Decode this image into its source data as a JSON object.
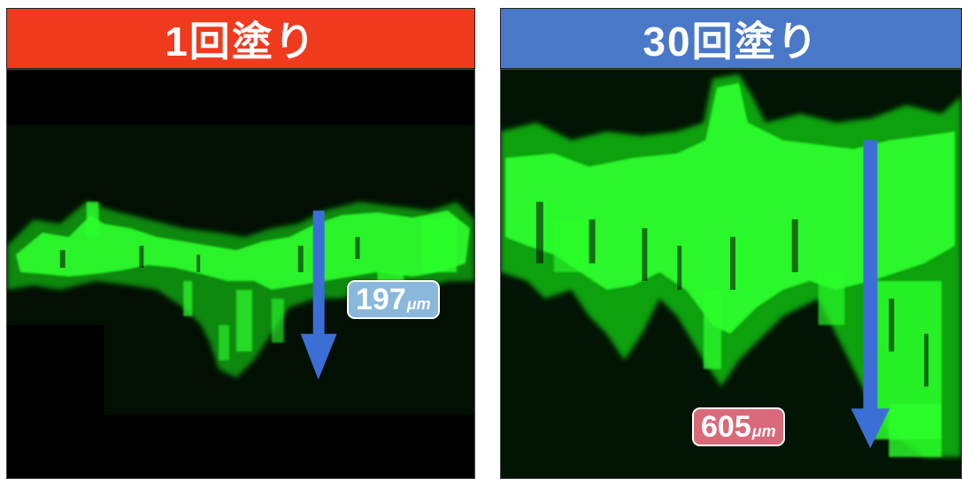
{
  "left_panel": {
    "title": "1回塗り",
    "header_color": "#f03a1e",
    "measurement": {
      "value": "197",
      "unit": "μm",
      "badge_color": "#8ab7dc"
    }
  },
  "right_panel": {
    "title": "30回塗り",
    "header_color": "#4a78c8",
    "measurement": {
      "value": "605",
      "unit": "μm",
      "badge_color": "#d96a7a"
    }
  },
  "arrow_color": "#3b6fd6",
  "signal_color": "#22ff22"
}
